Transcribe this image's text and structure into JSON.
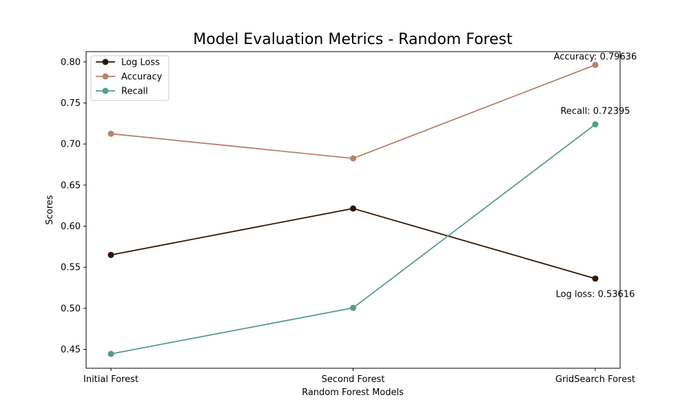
{
  "chart_data": {
    "type": "line",
    "title": "Model Evaluation Metrics - Random Forest",
    "xlabel": "Random Forest Models",
    "ylabel": "Scores",
    "categories": [
      "Initial Forest",
      "Second Forest",
      "GridSearch Forest"
    ],
    "ylim": [
      0.427,
      0.8125
    ],
    "yticks": [
      "0.45",
      "0.50",
      "0.55",
      "0.60",
      "0.65",
      "0.70",
      "0.75",
      "0.80"
    ],
    "grid": false,
    "legend_position": "top-left",
    "series": [
      {
        "name": "Log Loss",
        "color": "#2e1503",
        "values": [
          0.565,
          0.6215,
          0.53616
        ]
      },
      {
        "name": "Accuracy",
        "color": "#b5836b",
        "values": [
          0.7125,
          0.6825,
          0.79636
        ]
      },
      {
        "name": "Recall",
        "color": "#579b8f",
        "values": [
          0.4445,
          0.5005,
          0.72395
        ]
      }
    ],
    "annotations": [
      {
        "text": "Accuracy: 0.79636",
        "series": "Accuracy",
        "category": "GridSearch Forest"
      },
      {
        "text": "Recall: 0.72395",
        "series": "Recall",
        "category": "GridSearch Forest"
      },
      {
        "text": "Log loss: 0.53616",
        "series": "Log Loss",
        "category": "GridSearch Forest"
      }
    ]
  }
}
